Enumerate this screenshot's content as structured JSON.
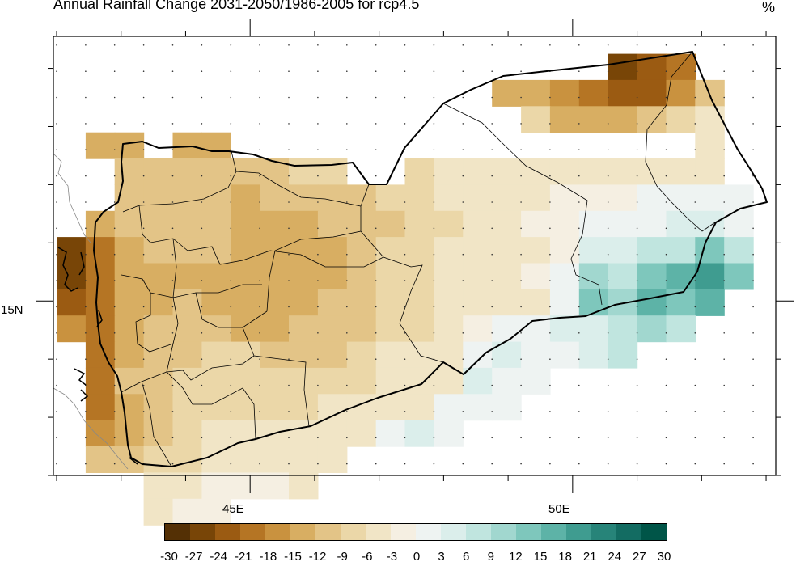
{
  "title": "Annual Rainfall Change 2031-2050/1986-2005 for rcp4.5",
  "units": "%",
  "axes": {
    "x_labels": [
      {
        "lon": 45,
        "text": "45E"
      },
      {
        "lon": 50,
        "text": "50E"
      }
    ],
    "y_labels": [
      {
        "lat": 15,
        "text": "15N"
      }
    ],
    "lon_range": [
      41.95,
      53.15
    ],
    "lat_range": [
      12.0,
      19.55
    ]
  },
  "colorbar": {
    "levels": [
      "-30",
      "-27",
      "-24",
      "-21",
      "-18",
      "-15",
      "-12",
      "-9",
      "-6",
      "-3",
      "0",
      "3",
      "6",
      "9",
      "12",
      "15",
      "18",
      "21",
      "24",
      "27",
      "30"
    ],
    "colors": [
      "#543005",
      "#784507",
      "#9b5b12",
      "#b57524",
      "#c9923f",
      "#d8ae62",
      "#e3c487",
      "#ebd7a8",
      "#f1e5c6",
      "#f5efe2",
      "#eef3f2",
      "#dbeeeb",
      "#c0e5df",
      "#a1d7cf",
      "#7ec7bc",
      "#5db3a7",
      "#3f9c90",
      "#278479",
      "#136c62",
      "#005548"
    ]
  },
  "chart_data": {
    "type": "heatmap",
    "title": "Annual Rainfall Change 2031-2050/1986-2005 for rcp4.5",
    "units": "%",
    "region": "Yemen",
    "grid_lon_start": 42.0,
    "grid_lat_start": 19.25,
    "grid_step_deg": 0.45,
    "rows": [
      [
        "",
        "",
        "",
        "",
        "",
        "",
        "",
        "",
        "",
        "",
        "",
        "",
        "",
        "",
        "",
        "",
        "",
        "",
        "",
        "-24",
        "-21",
        "-18",
        "",
        ""
      ],
      [
        "",
        "",
        "",
        "",
        "",
        "",
        "",
        "",
        "",
        "",
        "",
        "",
        "",
        "",
        "",
        "-12",
        "-12",
        "-15",
        "-18",
        "-21",
        "-21",
        "-15",
        "-9",
        ""
      ],
      [
        "",
        "",
        "",
        "",
        "",
        "",
        "",
        "",
        "",
        "",
        "",
        "",
        "",
        "",
        "",
        "",
        "-6",
        "-12",
        "-12",
        "-12",
        "-9",
        "-6",
        "-3",
        ""
      ],
      [
        "",
        "-12",
        "-12",
        "",
        "-12",
        "-12",
        "",
        "",
        "",
        "",
        "",
        "",
        "",
        "",
        "",
        "",
        "",
        "",
        "",
        "",
        "",
        "",
        "-3",
        ""
      ],
      [
        "",
        "",
        "-9",
        "-9",
        "-9",
        "-9",
        "-9",
        "-9",
        "-6",
        "-6",
        "",
        "",
        "-6",
        "-3",
        "-3",
        "-3",
        "-3",
        "-3",
        "-3",
        "-3",
        "-3",
        "-3",
        "-3",
        ""
      ],
      [
        "",
        "",
        "-9",
        "-9",
        "-9",
        "-9",
        "-12",
        "-9",
        "-9",
        "-9",
        "-9",
        "-6",
        "-6",
        "-3",
        "-3",
        "-3",
        "-3",
        "0",
        "0",
        "0",
        "3",
        "3",
        "3",
        "3"
      ],
      [
        "",
        "-12",
        "-9",
        "-9",
        "-9",
        "-9",
        "-12",
        "-12",
        "-12",
        "-9",
        "-9",
        "-9",
        "-6",
        "-6",
        "-3",
        "-3",
        "0",
        "0",
        "3",
        "3",
        "3",
        "6",
        "6",
        "3"
      ],
      [
        "-24",
        "-18",
        "-12",
        "-9",
        "-9",
        "-9",
        "-12",
        "-12",
        "-12",
        "-12",
        "-9",
        "-6",
        "-6",
        "-3",
        "-3",
        "-3",
        "-3",
        "0",
        "6",
        "6",
        "9",
        "9",
        "15",
        "9"
      ],
      [
        "-24",
        "-18",
        "-12",
        "-12",
        "-12",
        "-12",
        "-12",
        "-12",
        "-12",
        "-12",
        "-9",
        "-6",
        "-6",
        "-3",
        "-3",
        "-3",
        "0",
        "3",
        "12",
        "9",
        "15",
        "18",
        "21",
        "15"
      ],
      [
        "-21",
        "-18",
        "-12",
        "-12",
        "-9",
        "-12",
        "-12",
        "-12",
        "-12",
        "-9",
        "-9",
        "-6",
        "-6",
        "-3",
        "-3",
        "-3",
        "-3",
        "3",
        "15",
        "12",
        "18",
        "15",
        "18",
        ""
      ],
      [
        "-15",
        "-18",
        "-12",
        "-9",
        "-9",
        "-9",
        "-12",
        "-12",
        "-9",
        "-9",
        "-9",
        "-6",
        "-6",
        "-3",
        "0",
        "3",
        "3",
        "6",
        "6",
        "9",
        "12",
        "9",
        "",
        ""
      ],
      [
        "",
        "-18",
        "-12",
        "-9",
        "-9",
        "-6",
        "-6",
        "-9",
        "-9",
        "-9",
        "-6",
        "-3",
        "-3",
        "-3",
        "3",
        "6",
        "3",
        "3",
        "6",
        "9",
        "",
        "",
        "",
        ""
      ],
      [
        "",
        "-18",
        "-9",
        "-9",
        "-6",
        "-6",
        "-6",
        "-6",
        "-6",
        "-6",
        "-6",
        "-3",
        "-3",
        "-3",
        "6",
        "3",
        "3",
        "",
        "",
        "",
        "",
        "",
        "",
        ""
      ],
      [
        "",
        "-18",
        "-12",
        "-9",
        "-6",
        "-6",
        "-6",
        "-6",
        "-6",
        "-3",
        "-3",
        "-3",
        "-3",
        "3",
        "3",
        "3",
        "",
        "",
        "",
        "",
        "",
        "",
        "",
        ""
      ],
      [
        "",
        "-15",
        "-12",
        "-9",
        "-6",
        "-3",
        "-3",
        "-3",
        "-3",
        "-3",
        "-3",
        "3",
        "6",
        "3",
        "",
        "",
        "",
        "",
        "",
        "",
        "",
        "",
        "",
        ""
      ],
      [
        "",
        "-9",
        "-9",
        "-6",
        "-6",
        "-3",
        "-3",
        "-3",
        "-3",
        "-3",
        "",
        "",
        "",
        "",
        "",
        "",
        "",
        "",
        "",
        "",
        "",
        "",
        "",
        ""
      ],
      [
        "",
        "",
        "",
        "-3",
        "-3",
        "0",
        "0",
        "0",
        "-3",
        "",
        "",
        "",
        "",
        "",
        "",
        "",
        "",
        "",
        "",
        "",
        "",
        "",
        "",
        ""
      ],
      [
        "",
        "",
        "",
        "-3",
        "0",
        "0",
        "",
        "",
        "",
        "",
        "",
        "",
        "",
        "",
        "",
        "",
        "",
        "",
        "",
        "",
        "",
        "",
        "",
        ""
      ]
    ]
  }
}
